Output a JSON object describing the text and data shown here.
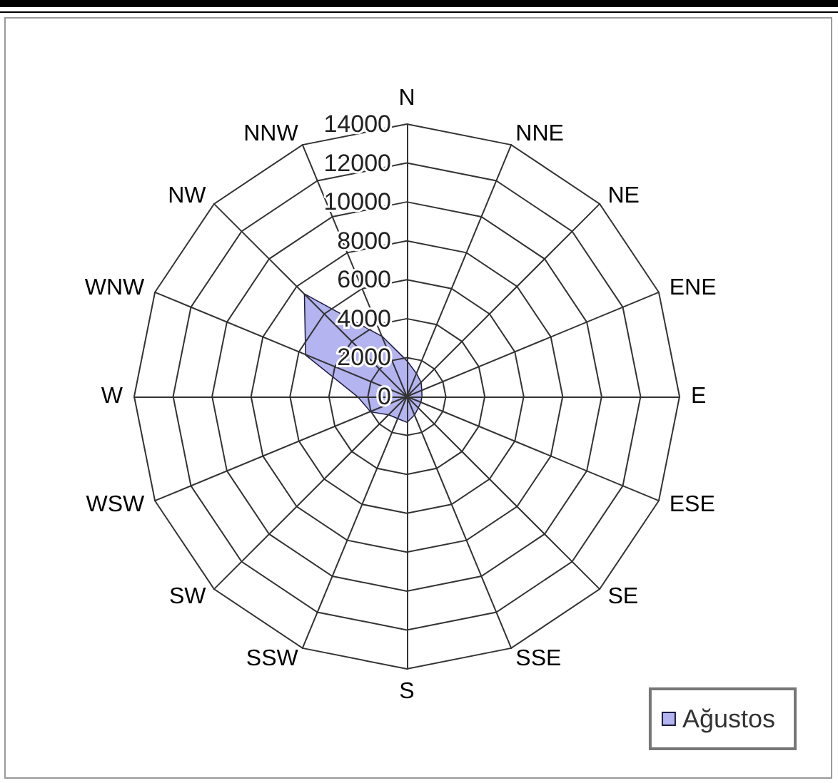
{
  "chart_data": {
    "type": "radar",
    "categories": [
      "N",
      "NNE",
      "NE",
      "ENE",
      "E",
      "ESE",
      "SE",
      "SSE",
      "S",
      "SSW",
      "SW",
      "WSW",
      "W",
      "WNW",
      "NW",
      "NNW"
    ],
    "series": [
      {
        "name": "Ağustos",
        "color": "#b4b4f0",
        "values": [
          1800,
          1250,
          1000,
          800,
          750,
          750,
          800,
          1000,
          1300,
          1200,
          1300,
          2000,
          2500,
          5600,
          7400,
          3300
        ]
      }
    ],
    "ylim": [
      0,
      14000
    ],
    "yticks": [
      0,
      2000,
      4000,
      6000,
      8000,
      10000,
      12000,
      14000
    ],
    "grid": true,
    "legend": "bottom right",
    "marker": "none"
  }
}
